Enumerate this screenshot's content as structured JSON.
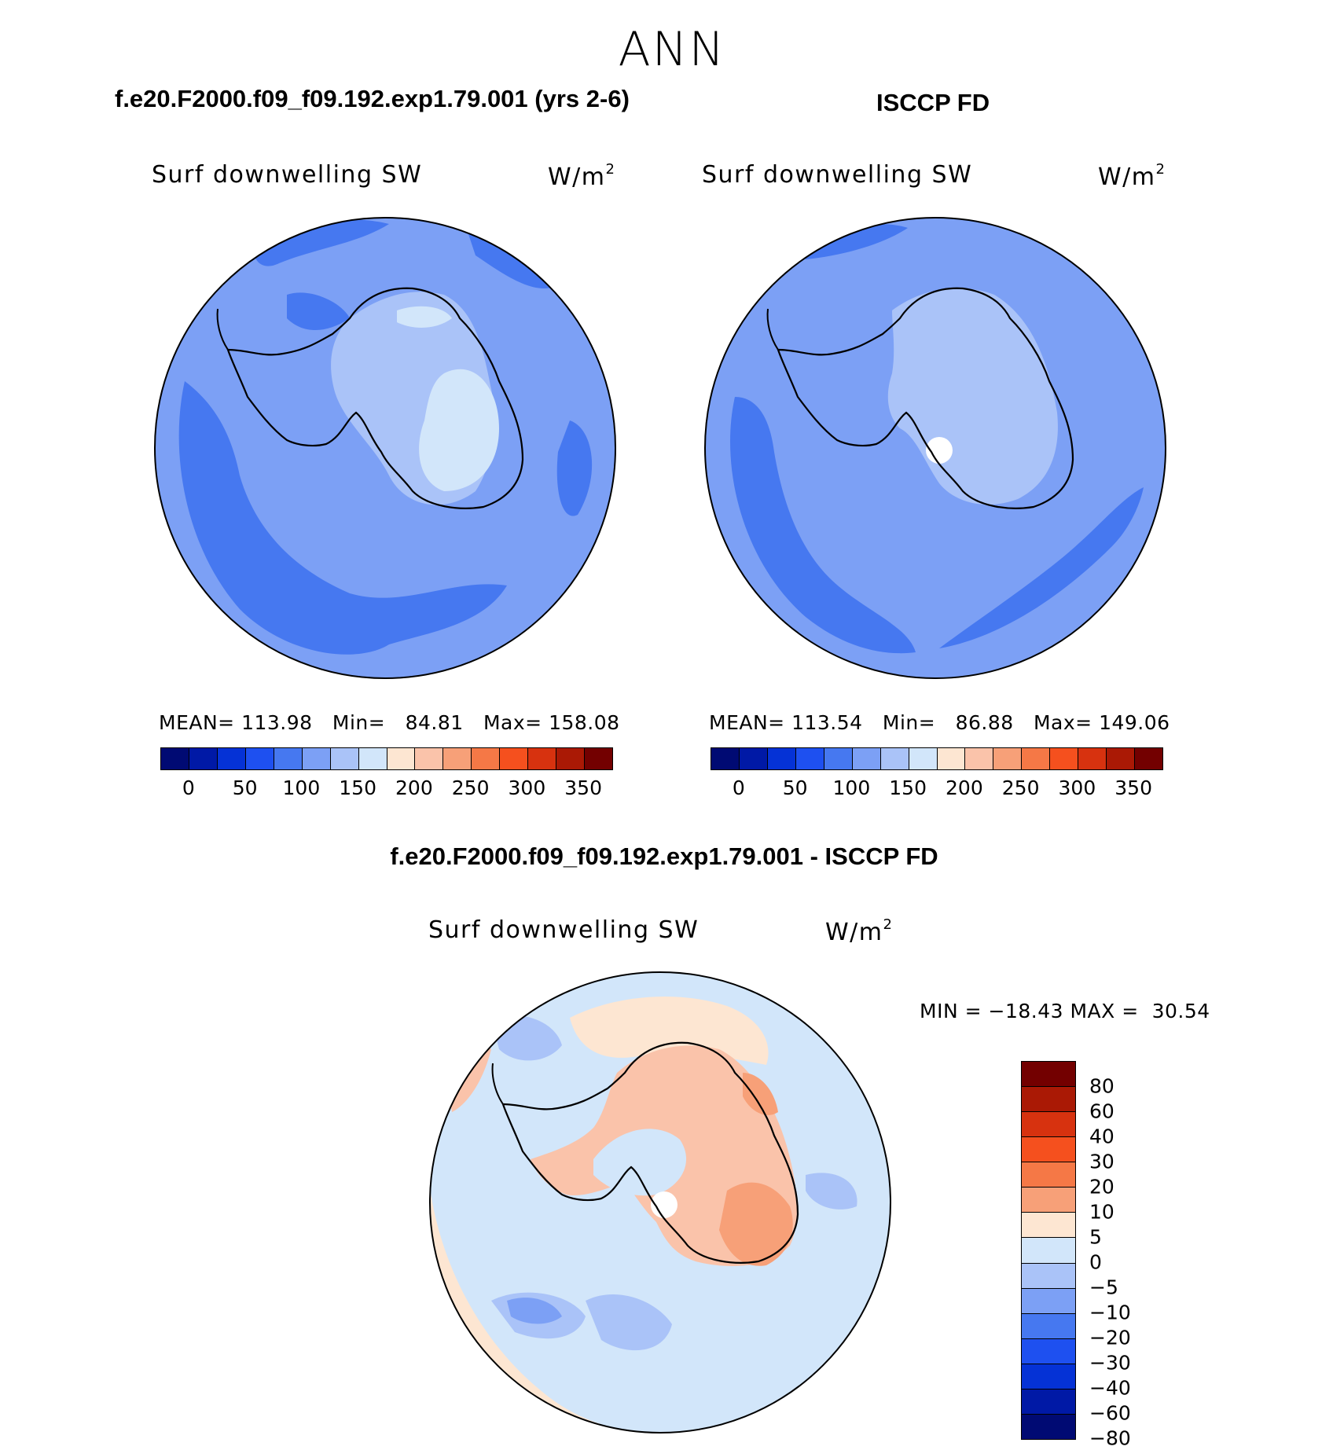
{
  "figure": {
    "season": "ANN",
    "diff_title": "f.e20.F2000.f09_f09.192.exp1.79.001 - ISCCP FD"
  },
  "panels": [
    {
      "id": "model",
      "case_title": "f.e20.F2000.f09_f09.192.exp1.79.001 (yrs 2-6)",
      "variable": "Surf downwelling SW",
      "units_base": "W/m",
      "units_exp": "2",
      "stats": {
        "mean_label": "MEAN=",
        "mean": "113.98",
        "min_label": "Min=",
        "min": "84.81",
        "max_label": "Max=",
        "max": "158.08"
      }
    },
    {
      "id": "obs",
      "case_title": "ISCCP FD",
      "variable": "Surf downwelling SW",
      "units_base": "W/m",
      "units_exp": "2",
      "stats": {
        "mean_label": "MEAN=",
        "mean": "113.54",
        "min_label": "Min=",
        "min": "86.88",
        "max_label": "Max=",
        "max": "149.06"
      }
    },
    {
      "id": "diff",
      "variable": "Surf downwelling SW",
      "units_base": "W/m",
      "units_exp": "2",
      "stats": {
        "min_label": "MIN =",
        "min": "−18.43",
        "max_label": "MAX =",
        "max": "30.54"
      }
    }
  ],
  "colorbar_abs": {
    "colors": [
      "#000a73",
      "#0019a6",
      "#0532d6",
      "#1e50f0",
      "#4678f0",
      "#7ca0f5",
      "#aac3f8",
      "#d2e6fa",
      "#fde6d2",
      "#fac3aa",
      "#f7a078",
      "#f57846",
      "#f5501e",
      "#d7320f",
      "#aa1905",
      "#730000"
    ],
    "ticks": [
      "0",
      "50",
      "100",
      "150",
      "200",
      "250",
      "300",
      "350"
    ]
  },
  "colorbar_diff": {
    "colors": [
      "#730000",
      "#aa1905",
      "#d7320f",
      "#f5501e",
      "#f57846",
      "#f7a078",
      "#fde6d2",
      "#d2e6fa",
      "#aac3f8",
      "#7ca0f5",
      "#4678f0",
      "#1e50f0",
      "#0532d6",
      "#0019a6",
      "#000a73"
    ],
    "ticks": [
      "80",
      "60",
      "40",
      "30",
      "20",
      "10",
      "5",
      "0",
      "−5",
      "−10",
      "−20",
      "−30",
      "−40",
      "−60",
      "−80"
    ]
  },
  "map_colors": {
    "bg_model": "#7ca0f5",
    "bg_obs": "#7ca0f5",
    "dark": "#4678f0",
    "light": "#aac3f8",
    "lighter": "#d2e6fa",
    "pole": "#ffffff",
    "diff_bg": "#d2e6fa",
    "diff_pos1": "#fde6d2",
    "diff_pos2": "#fac3aa",
    "diff_pos3": "#f7a078",
    "diff_neg1": "#aac3f8",
    "diff_neg2": "#7ca0f5"
  }
}
